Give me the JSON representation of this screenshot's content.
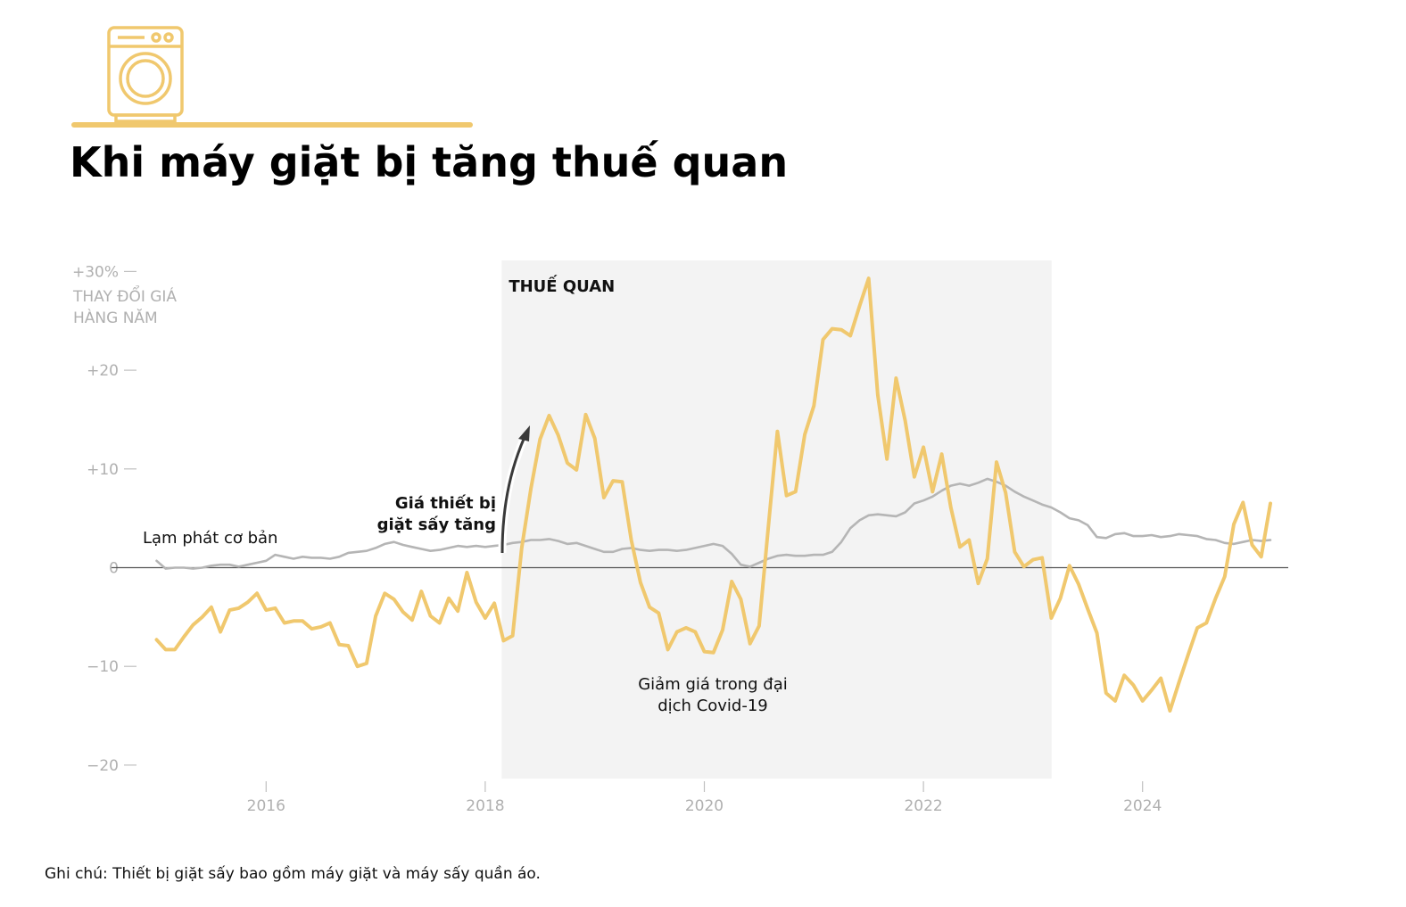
{
  "title": "Khi máy giặt bị tăng thuế quan",
  "icon": "washing-machine-icon",
  "colors": {
    "accent": "#f0c86e",
    "core_inflation": "#b5b5b5",
    "shade": "#f3f3f3",
    "zero_line": "#555555",
    "axis_text": "#b0b0b0"
  },
  "y_axis": {
    "label_line1": "THAY ĐỔI GIÁ",
    "label_line2": "HÀNG NĂM",
    "ticks": [
      {
        "value": 30,
        "label": "+30%"
      },
      {
        "value": 20,
        "label": "+20"
      },
      {
        "value": 10,
        "label": "+10"
      },
      {
        "value": 0,
        "label": "0"
      },
      {
        "value": -10,
        "label": "−10"
      },
      {
        "value": -20,
        "label": "−20"
      }
    ]
  },
  "x_axis": {
    "ticks": [
      {
        "value": 2016,
        "label": "2016"
      },
      {
        "value": 2018,
        "label": "2018"
      },
      {
        "value": 2020,
        "label": "2020"
      },
      {
        "value": 2022,
        "label": "2022"
      },
      {
        "value": 2024,
        "label": "2024"
      }
    ]
  },
  "annotations": {
    "tariff_label": "THUẾ QUAN",
    "rise_line1": "Giá thiết bị",
    "rise_line2": "giặt sấy tăng",
    "core_label": "Lạm phát cơ bản",
    "covid_line1": "Giảm giá trong đại",
    "covid_line2": "dịch Covid-19"
  },
  "note": "Ghi chú: Thiết bị giặt sấy bao gồm máy giặt và máy sấy quần áo.",
  "chart_data": {
    "type": "line",
    "ylabel": "THAY ĐỔI GIÁ HÀNG NĂM",
    "ylim": [
      -21,
      30
    ],
    "xlim": [
      2015.0,
      2025.25
    ],
    "shaded_region": {
      "label": "THUẾ QUAN",
      "x_start": 2018.15,
      "x_end": 2023.17
    },
    "series": [
      {
        "role": "appliances",
        "color": "#f0c86e",
        "points": [
          [
            2015.0,
            -7.3
          ],
          [
            2015.083,
            -8.3
          ],
          [
            2015.167,
            -8.3
          ],
          [
            2015.25,
            -7.0
          ],
          [
            2015.333,
            -5.8
          ],
          [
            2015.417,
            -5.0
          ],
          [
            2015.5,
            -4.0
          ],
          [
            2015.583,
            -6.5
          ],
          [
            2015.667,
            -4.3
          ],
          [
            2015.75,
            -4.1
          ],
          [
            2015.833,
            -3.5
          ],
          [
            2015.917,
            -2.6
          ],
          [
            2016.0,
            -4.3
          ],
          [
            2016.083,
            -4.1
          ],
          [
            2016.167,
            -5.6
          ],
          [
            2016.25,
            -5.4
          ],
          [
            2016.333,
            -5.4
          ],
          [
            2016.417,
            -6.2
          ],
          [
            2016.5,
            -6.0
          ],
          [
            2016.583,
            -5.6
          ],
          [
            2016.667,
            -7.8
          ],
          [
            2016.75,
            -7.9
          ],
          [
            2016.833,
            -10.0
          ],
          [
            2016.917,
            -9.7
          ],
          [
            2017.0,
            -4.9
          ],
          [
            2017.083,
            -2.6
          ],
          [
            2017.167,
            -3.2
          ],
          [
            2017.25,
            -4.5
          ],
          [
            2017.333,
            -5.3
          ],
          [
            2017.417,
            -2.4
          ],
          [
            2017.5,
            -4.9
          ],
          [
            2017.583,
            -5.6
          ],
          [
            2017.667,
            -3.1
          ],
          [
            2017.75,
            -4.4
          ],
          [
            2017.833,
            -0.5
          ],
          [
            2017.917,
            -3.5
          ],
          [
            2018.0,
            -5.1
          ],
          [
            2018.083,
            -3.6
          ],
          [
            2018.167,
            -7.4
          ],
          [
            2018.25,
            -6.9
          ],
          [
            2018.333,
            2.0
          ],
          [
            2018.417,
            8.0
          ],
          [
            2018.5,
            13.0
          ],
          [
            2018.583,
            15.4
          ],
          [
            2018.667,
            13.4
          ],
          [
            2018.75,
            10.6
          ],
          [
            2018.833,
            9.9
          ],
          [
            2018.917,
            15.5
          ],
          [
            2019.0,
            13.1
          ],
          [
            2019.083,
            7.1
          ],
          [
            2019.167,
            8.8
          ],
          [
            2019.25,
            8.7
          ],
          [
            2019.333,
            2.8
          ],
          [
            2019.417,
            -1.5
          ],
          [
            2019.5,
            -4.0
          ],
          [
            2019.583,
            -4.6
          ],
          [
            2019.667,
            -8.3
          ],
          [
            2019.75,
            -6.5
          ],
          [
            2019.833,
            -6.1
          ],
          [
            2019.917,
            -6.5
          ],
          [
            2020.0,
            -8.5
          ],
          [
            2020.083,
            -8.6
          ],
          [
            2020.167,
            -6.3
          ],
          [
            2020.25,
            -1.4
          ],
          [
            2020.333,
            -3.2
          ],
          [
            2020.417,
            -7.7
          ],
          [
            2020.5,
            -5.9
          ],
          [
            2020.583,
            4.0
          ],
          [
            2020.667,
            13.8
          ],
          [
            2020.75,
            7.3
          ],
          [
            2020.833,
            7.7
          ],
          [
            2020.917,
            13.5
          ],
          [
            2021.0,
            16.4
          ],
          [
            2021.083,
            23.1
          ],
          [
            2021.167,
            24.2
          ],
          [
            2021.25,
            24.1
          ],
          [
            2021.333,
            23.5
          ],
          [
            2021.417,
            26.5
          ],
          [
            2021.5,
            29.3
          ],
          [
            2021.583,
            17.5
          ],
          [
            2021.667,
            11.0
          ],
          [
            2021.75,
            19.2
          ],
          [
            2021.833,
            14.9
          ],
          [
            2021.917,
            9.2
          ],
          [
            2022.0,
            12.2
          ],
          [
            2022.083,
            7.7
          ],
          [
            2022.167,
            11.5
          ],
          [
            2022.25,
            6.1
          ],
          [
            2022.333,
            2.1
          ],
          [
            2022.417,
            2.8
          ],
          [
            2022.5,
            -1.6
          ],
          [
            2022.583,
            0.9
          ],
          [
            2022.667,
            10.7
          ],
          [
            2022.75,
            7.6
          ],
          [
            2022.833,
            1.6
          ],
          [
            2022.917,
            0.1
          ],
          [
            2023.0,
            0.8
          ],
          [
            2023.083,
            1.0
          ],
          [
            2023.167,
            -5.1
          ],
          [
            2023.25,
            -3.1
          ],
          [
            2023.333,
            0.2
          ],
          [
            2023.417,
            -1.7
          ],
          [
            2023.5,
            -4.2
          ],
          [
            2023.583,
            -6.6
          ],
          [
            2023.667,
            -12.7
          ],
          [
            2023.75,
            -13.5
          ],
          [
            2023.833,
            -10.9
          ],
          [
            2023.917,
            -11.9
          ],
          [
            2024.0,
            -13.5
          ],
          [
            2024.083,
            -12.4
          ],
          [
            2024.167,
            -11.2
          ],
          [
            2024.25,
            -14.5
          ],
          [
            2024.333,
            -11.6
          ],
          [
            2024.417,
            -8.8
          ],
          [
            2024.5,
            -6.1
          ],
          [
            2024.583,
            -5.6
          ],
          [
            2024.667,
            -3.1
          ],
          [
            2024.75,
            -0.9
          ],
          [
            2024.833,
            4.4
          ],
          [
            2024.917,
            6.6
          ],
          [
            2025.0,
            2.3
          ],
          [
            2025.083,
            1.1
          ],
          [
            2025.167,
            6.5
          ]
        ]
      },
      {
        "name": "Lạm phát cơ bản",
        "color": "#b5b5b5",
        "points": [
          [
            2015.0,
            0.7
          ],
          [
            2015.083,
            -0.1
          ],
          [
            2015.167,
            0.0
          ],
          [
            2015.25,
            0.0
          ],
          [
            2015.333,
            -0.1
          ],
          [
            2015.417,
            0.0
          ],
          [
            2015.5,
            0.2
          ],
          [
            2015.583,
            0.3
          ],
          [
            2015.667,
            0.3
          ],
          [
            2015.75,
            0.1
          ],
          [
            2015.833,
            0.3
          ],
          [
            2015.917,
            0.5
          ],
          [
            2016.0,
            0.7
          ],
          [
            2016.083,
            1.3
          ],
          [
            2016.167,
            1.1
          ],
          [
            2016.25,
            0.9
          ],
          [
            2016.333,
            1.1
          ],
          [
            2016.417,
            1.0
          ],
          [
            2016.5,
            1.0
          ],
          [
            2016.583,
            0.9
          ],
          [
            2016.667,
            1.1
          ],
          [
            2016.75,
            1.5
          ],
          [
            2016.833,
            1.6
          ],
          [
            2016.917,
            1.7
          ],
          [
            2017.0,
            2.0
          ],
          [
            2017.083,
            2.4
          ],
          [
            2017.167,
            2.6
          ],
          [
            2017.25,
            2.3
          ],
          [
            2017.333,
            2.1
          ],
          [
            2017.417,
            1.9
          ],
          [
            2017.5,
            1.7
          ],
          [
            2017.583,
            1.8
          ],
          [
            2017.667,
            2.0
          ],
          [
            2017.75,
            2.2
          ],
          [
            2017.833,
            2.1
          ],
          [
            2017.917,
            2.2
          ],
          [
            2018.0,
            2.1
          ],
          [
            2018.083,
            2.2
          ],
          [
            2018.167,
            2.3
          ],
          [
            2018.25,
            2.5
          ],
          [
            2018.333,
            2.6
          ],
          [
            2018.417,
            2.8
          ],
          [
            2018.5,
            2.8
          ],
          [
            2018.583,
            2.9
          ],
          [
            2018.667,
            2.7
          ],
          [
            2018.75,
            2.4
          ],
          [
            2018.833,
            2.5
          ],
          [
            2018.917,
            2.2
          ],
          [
            2019.0,
            1.9
          ],
          [
            2019.083,
            1.6
          ],
          [
            2019.167,
            1.6
          ],
          [
            2019.25,
            1.9
          ],
          [
            2019.333,
            2.0
          ],
          [
            2019.417,
            1.8
          ],
          [
            2019.5,
            1.7
          ],
          [
            2019.583,
            1.8
          ],
          [
            2019.667,
            1.8
          ],
          [
            2019.75,
            1.7
          ],
          [
            2019.833,
            1.8
          ],
          [
            2019.917,
            2.0
          ],
          [
            2020.0,
            2.2
          ],
          [
            2020.083,
            2.4
          ],
          [
            2020.167,
            2.2
          ],
          [
            2020.25,
            1.4
          ],
          [
            2020.333,
            0.3
          ],
          [
            2020.417,
            0.1
          ],
          [
            2020.5,
            0.5
          ],
          [
            2020.583,
            0.9
          ],
          [
            2020.667,
            1.2
          ],
          [
            2020.75,
            1.3
          ],
          [
            2020.833,
            1.2
          ],
          [
            2020.917,
            1.2
          ],
          [
            2021.0,
            1.3
          ],
          [
            2021.083,
            1.3
          ],
          [
            2021.167,
            1.6
          ],
          [
            2021.25,
            2.6
          ],
          [
            2021.333,
            4.0
          ],
          [
            2021.417,
            4.8
          ],
          [
            2021.5,
            5.3
          ],
          [
            2021.583,
            5.4
          ],
          [
            2021.667,
            5.3
          ],
          [
            2021.75,
            5.2
          ],
          [
            2021.833,
            5.6
          ],
          [
            2021.917,
            6.5
          ],
          [
            2022.0,
            6.8
          ],
          [
            2022.083,
            7.2
          ],
          [
            2022.167,
            7.8
          ],
          [
            2022.25,
            8.3
          ],
          [
            2022.333,
            8.5
          ],
          [
            2022.417,
            8.3
          ],
          [
            2022.5,
            8.6
          ],
          [
            2022.583,
            9.0
          ],
          [
            2022.667,
            8.7
          ],
          [
            2022.75,
            8.3
          ],
          [
            2022.833,
            7.7
          ],
          [
            2022.917,
            7.2
          ],
          [
            2023.0,
            6.8
          ],
          [
            2023.083,
            6.4
          ],
          [
            2023.167,
            6.1
          ],
          [
            2023.25,
            5.6
          ],
          [
            2023.333,
            5.0
          ],
          [
            2023.417,
            4.8
          ],
          [
            2023.5,
            4.3
          ],
          [
            2023.583,
            3.1
          ],
          [
            2023.667,
            3.0
          ],
          [
            2023.75,
            3.4
          ],
          [
            2023.833,
            3.5
          ],
          [
            2023.917,
            3.2
          ],
          [
            2024.0,
            3.2
          ],
          [
            2024.083,
            3.3
          ],
          [
            2024.167,
            3.1
          ],
          [
            2024.25,
            3.2
          ],
          [
            2024.333,
            3.4
          ],
          [
            2024.417,
            3.3
          ],
          [
            2024.5,
            3.2
          ],
          [
            2024.583,
            2.9
          ],
          [
            2024.667,
            2.8
          ],
          [
            2024.75,
            2.5
          ],
          [
            2024.833,
            2.4
          ],
          [
            2024.917,
            2.6
          ],
          [
            2025.0,
            2.8
          ],
          [
            2025.083,
            2.7
          ],
          [
            2025.167,
            2.8
          ]
        ]
      }
    ]
  }
}
